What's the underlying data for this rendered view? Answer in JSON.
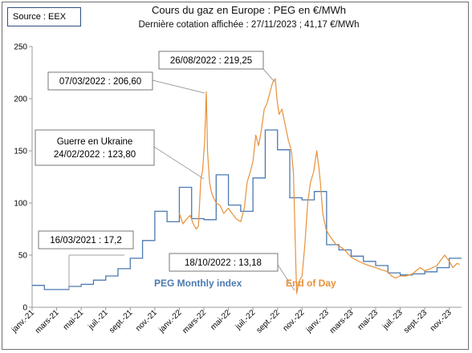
{
  "source_label": "Source : EEX",
  "chart_data": {
    "type": "line",
    "title": "Cours du gaz en Europe : PEG en €/MWh",
    "subtitle": "Dernière cotation affichée : 27/11/2023 ; 41,17 €/MWh",
    "ylim": [
      0,
      250
    ],
    "y_ticks": [
      0,
      50,
      100,
      150,
      200,
      250
    ],
    "x_ticks": [
      "janv.-21",
      "mars-21",
      "mai-21",
      "juil.-21",
      "sept.-21",
      "nov.-21",
      "janv.-22",
      "mars-22",
      "mai-22",
      "juil.-22",
      "sept.-22",
      "nov.-22",
      "janv.-23",
      "mars-23",
      "mai-23",
      "juil.-23",
      "sept.-23",
      "nov.-23"
    ],
    "series": [
      {
        "name": "PEG Monthly index",
        "color": "#4a7ab0",
        "type": "step",
        "x": [
          "2021-01",
          "2021-02",
          "2021-03",
          "2021-04",
          "2021-05",
          "2021-06",
          "2021-07",
          "2021-08",
          "2021-09",
          "2021-10",
          "2021-11",
          "2021-12",
          "2022-01",
          "2022-02",
          "2022-03",
          "2022-04",
          "2022-05",
          "2022-06",
          "2022-07",
          "2022-08",
          "2022-09",
          "2022-10",
          "2022-11",
          "2022-12",
          "2023-01",
          "2023-02",
          "2023-03",
          "2023-04",
          "2023-05",
          "2023-06",
          "2023-07",
          "2023-08",
          "2023-09",
          "2023-10",
          "2023-11"
        ],
        "values": [
          21,
          17,
          17,
          20,
          22,
          26,
          30,
          37,
          47,
          64,
          92,
          82,
          115,
          85,
          84,
          127,
          98,
          92,
          124,
          170,
          151,
          105,
          103,
          111,
          60,
          55,
          49,
          44,
          40,
          33,
          31,
          32,
          34,
          38,
          47
        ]
      },
      {
        "name": "End of Day",
        "color": "#e8913a",
        "type": "line",
        "x": [
          "2022-01-01",
          "2022-01-10",
          "2022-01-20",
          "2022-01-28",
          "2022-02-05",
          "2022-02-12",
          "2022-02-18",
          "2022-02-24",
          "2022-02-28",
          "2022-03-03",
          "2022-03-07",
          "2022-03-10",
          "2022-03-15",
          "2022-03-20",
          "2022-03-25",
          "2022-04-01",
          "2022-04-10",
          "2022-04-20",
          "2022-05-01",
          "2022-05-10",
          "2022-05-20",
          "2022-06-01",
          "2022-06-10",
          "2022-06-17",
          "2022-06-25",
          "2022-07-01",
          "2022-07-08",
          "2022-07-15",
          "2022-07-22",
          "2022-07-29",
          "2022-08-05",
          "2022-08-12",
          "2022-08-19",
          "2022-08-26",
          "2022-08-30",
          "2022-09-05",
          "2022-09-12",
          "2022-09-20",
          "2022-09-28",
          "2022-10-05",
          "2022-10-10",
          "2022-10-18",
          "2022-10-24",
          "2022-11-01",
          "2022-11-08",
          "2022-11-15",
          "2022-11-22",
          "2022-11-30",
          "2022-12-07",
          "2022-12-12",
          "2022-12-16",
          "2022-12-22",
          "2022-12-30",
          "2023-01-06",
          "2023-01-15",
          "2023-01-25",
          "2023-02-05",
          "2023-02-15",
          "2023-03-01",
          "2023-03-15",
          "2023-04-01",
          "2023-04-15",
          "2023-05-01",
          "2023-05-15",
          "2023-06-01",
          "2023-06-10",
          "2023-06-20",
          "2023-07-01",
          "2023-07-15",
          "2023-08-01",
          "2023-08-10",
          "2023-08-20",
          "2023-09-01",
          "2023-09-15",
          "2023-10-01",
          "2023-10-10",
          "2023-10-20",
          "2023-11-01",
          "2023-11-10",
          "2023-11-20",
          "2023-11-27"
        ],
        "values": [
          90,
          80,
          85,
          88,
          80,
          75,
          78,
          123.8,
          130,
          160,
          206.6,
          150,
          120,
          110,
          105,
          100,
          98,
          90,
          95,
          90,
          85,
          82,
          95,
          120,
          130,
          140,
          165,
          155,
          170,
          190,
          195,
          205,
          215,
          219.25,
          200,
          185,
          190,
          175,
          160,
          150,
          130,
          13.18,
          25,
          30,
          60,
          100,
          120,
          130,
          150,
          135,
          120,
          90,
          75,
          70,
          65,
          60,
          58,
          55,
          48,
          45,
          42,
          40,
          38,
          36,
          34,
          30,
          28,
          30,
          30,
          32,
          35,
          38,
          35,
          37,
          40,
          45,
          50,
          44,
          38,
          42,
          41.17
        ]
      }
    ],
    "annotations": [
      "07/03/2022 : 206,60",
      "26/08/2022 : 219,25",
      "Guerre en Ukraine",
      "24/02/2022 : 123,80",
      "16/03/2021 : 17,2",
      "18/10/2022 : 13,18"
    ]
  }
}
